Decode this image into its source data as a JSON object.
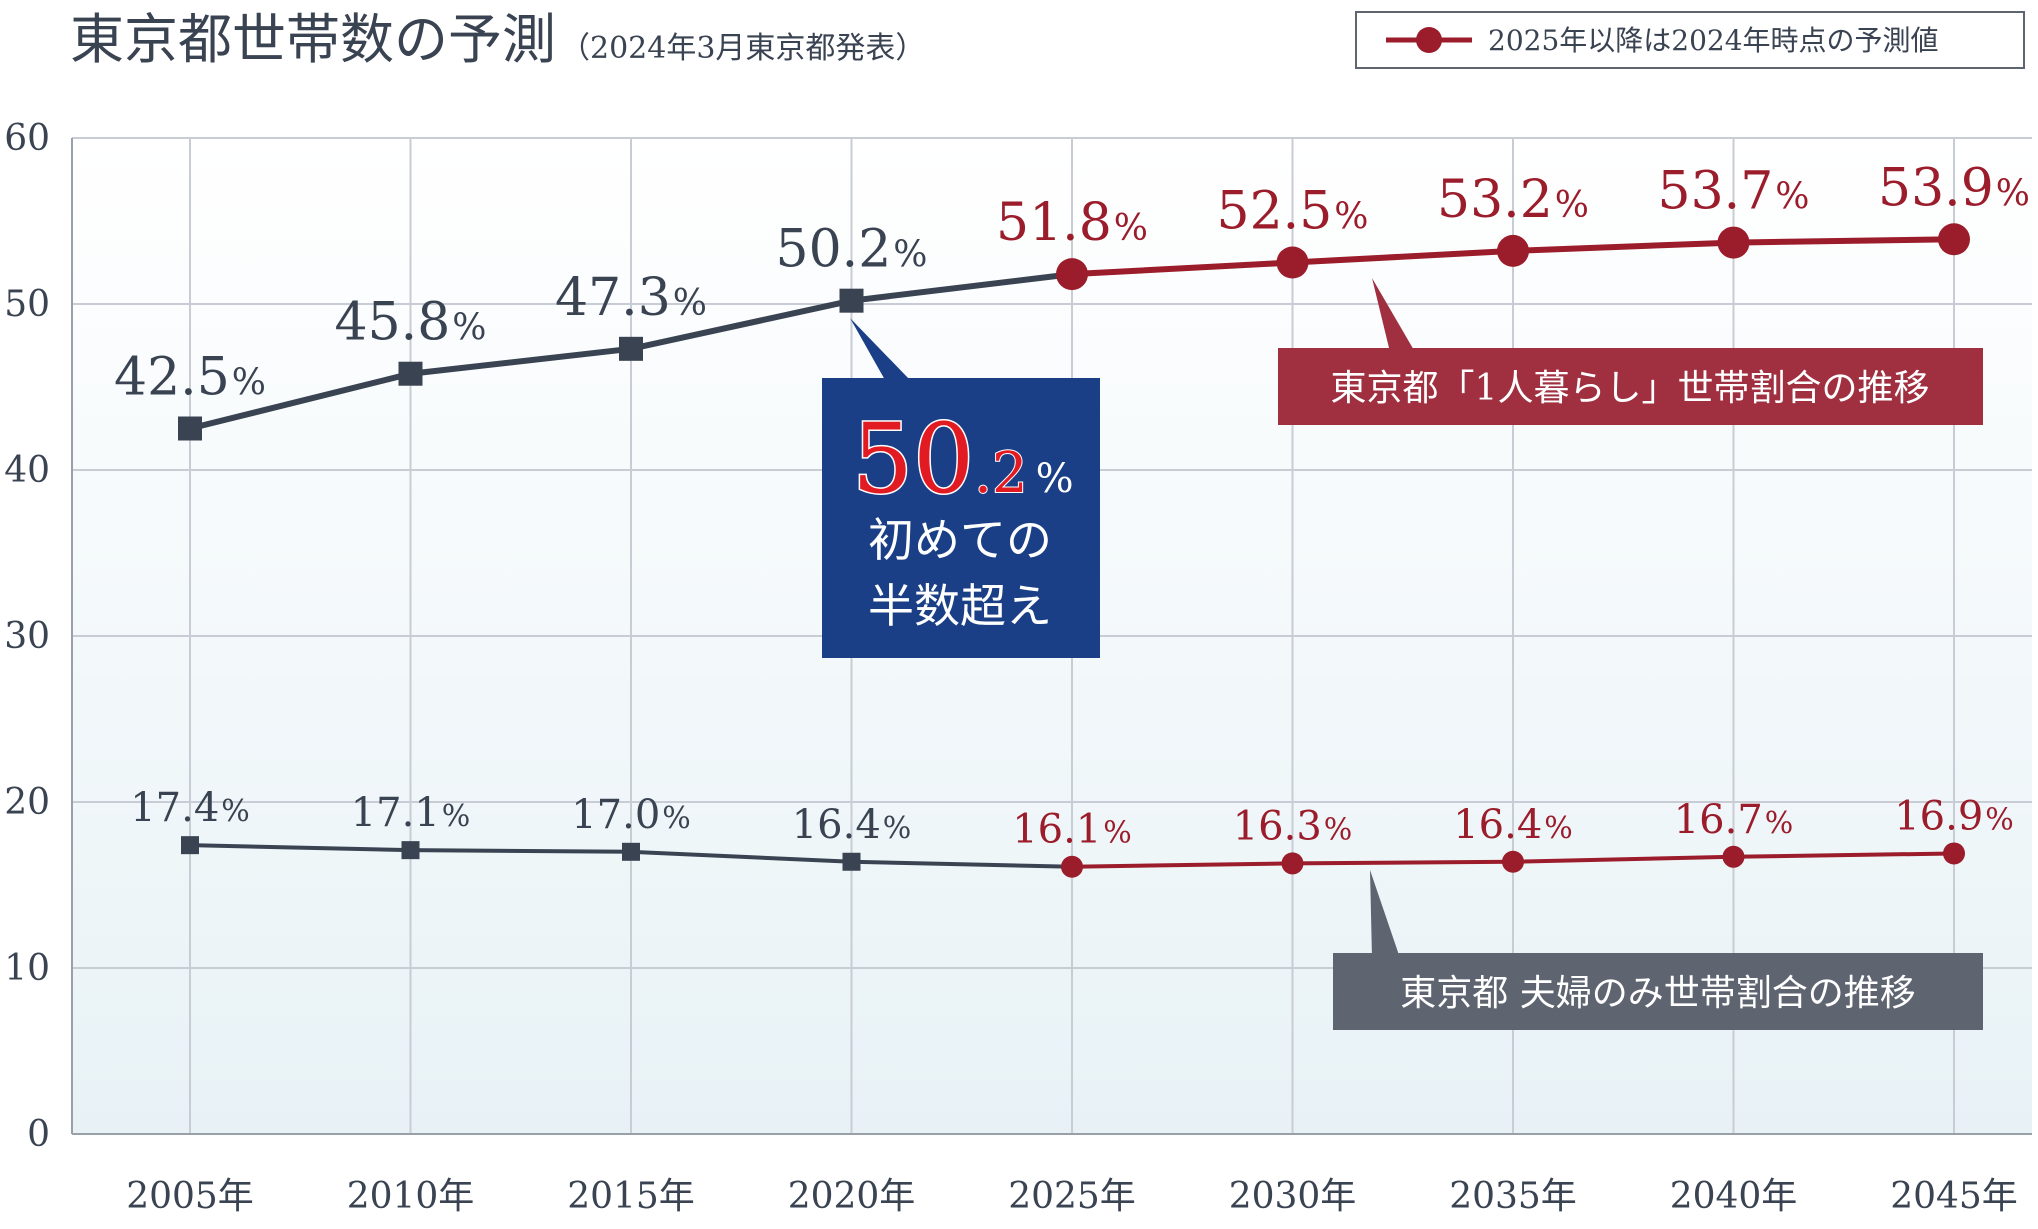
{
  "title": "東京都世帯数の予測",
  "subtitle": "（2024年3月東京都発表）",
  "legend": {
    "label": "2025年以降は2024年時点の予測値"
  },
  "colors": {
    "actual": "#3a4352",
    "forecast": "#9b1c2a",
    "callout_blue": "#1a3f86",
    "callout_red": "#a03040",
    "callout_gray": "#5e6470",
    "grid": "#c8ccd4"
  },
  "callouts": {
    "highlight": {
      "number": "50",
      "decimal": ".2",
      "percent": "%",
      "line1": "初めての",
      "line2": "半数超え"
    },
    "single": "東京都「1人暮らし」世帯割合の推移",
    "couple": "東京都 夫婦のみ世帯割合の推移"
  },
  "chart_data": {
    "type": "line",
    "title": "東京都世帯数の予測",
    "categories": [
      "2005年",
      "2010年",
      "2015年",
      "2020年",
      "2025年",
      "2030年",
      "2035年",
      "2040年",
      "2045年"
    ],
    "ylim": [
      0,
      60
    ],
    "yticks": [
      0,
      10,
      20,
      30,
      40,
      50,
      60
    ],
    "grid": true,
    "legend_position": "top-right",
    "forecast_from_index": 4,
    "series": [
      {
        "name": "東京都「1人暮らし」世帯割合の推移",
        "values": [
          42.5,
          45.8,
          47.3,
          50.2,
          51.8,
          52.5,
          53.2,
          53.7,
          53.9
        ],
        "labels": [
          "42.5",
          "45.8",
          "47.3",
          "50.2",
          "51.8",
          "52.5",
          "53.2",
          "53.7",
          "53.9"
        ]
      },
      {
        "name": "東京都 夫婦のみ世帯割合の推移",
        "values": [
          17.4,
          17.1,
          17.0,
          16.4,
          16.1,
          16.3,
          16.4,
          16.7,
          16.9
        ],
        "labels": [
          "17.4",
          "17.1",
          "17.0",
          "16.4",
          "16.1",
          "16.3",
          "16.4",
          "16.7",
          "16.9"
        ]
      }
    ]
  }
}
